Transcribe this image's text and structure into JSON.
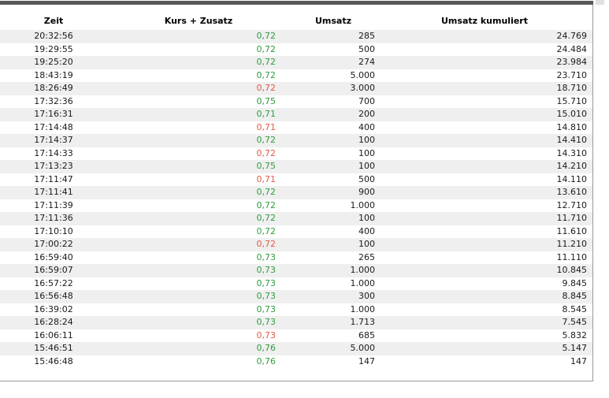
{
  "colors": {
    "up": "#2f9e3f",
    "down": "#e05c4b",
    "rowAlt": "#efefef",
    "topBar": "#58585a",
    "border": "#999999"
  },
  "table": {
    "headers": [
      "Zeit",
      "Kurs + Zusatz",
      "Umsatz",
      "Umsatz kumuliert"
    ],
    "rows": [
      {
        "zeit": "20:32:56",
        "kurs": "0,72",
        "trend": "up",
        "umsatz": "285",
        "kumuliert": "24.769"
      },
      {
        "zeit": "19:29:55",
        "kurs": "0,72",
        "trend": "up",
        "umsatz": "500",
        "kumuliert": "24.484"
      },
      {
        "zeit": "19:25:20",
        "kurs": "0,72",
        "trend": "up",
        "umsatz": "274",
        "kumuliert": "23.984"
      },
      {
        "zeit": "18:43:19",
        "kurs": "0,72",
        "trend": "up",
        "umsatz": "5.000",
        "kumuliert": "23.710"
      },
      {
        "zeit": "18:26:49",
        "kurs": "0,72",
        "trend": "down",
        "umsatz": "3.000",
        "kumuliert": "18.710"
      },
      {
        "zeit": "17:32:36",
        "kurs": "0,75",
        "trend": "up",
        "umsatz": "700",
        "kumuliert": "15.710"
      },
      {
        "zeit": "17:16:31",
        "kurs": "0,71",
        "trend": "up",
        "umsatz": "200",
        "kumuliert": "15.010"
      },
      {
        "zeit": "17:14:48",
        "kurs": "0,71",
        "trend": "down",
        "umsatz": "400",
        "kumuliert": "14.810"
      },
      {
        "zeit": "17:14:37",
        "kurs": "0,72",
        "trend": "up",
        "umsatz": "100",
        "kumuliert": "14.410"
      },
      {
        "zeit": "17:14:33",
        "kurs": "0,72",
        "trend": "down",
        "umsatz": "100",
        "kumuliert": "14.310"
      },
      {
        "zeit": "17:13:23",
        "kurs": "0,75",
        "trend": "up",
        "umsatz": "100",
        "kumuliert": "14.210"
      },
      {
        "zeit": "17:11:47",
        "kurs": "0,71",
        "trend": "down",
        "umsatz": "500",
        "kumuliert": "14.110"
      },
      {
        "zeit": "17:11:41",
        "kurs": "0,72",
        "trend": "up",
        "umsatz": "900",
        "kumuliert": "13.610"
      },
      {
        "zeit": "17:11:39",
        "kurs": "0,72",
        "trend": "up",
        "umsatz": "1.000",
        "kumuliert": "12.710"
      },
      {
        "zeit": "17:11:36",
        "kurs": "0,72",
        "trend": "up",
        "umsatz": "100",
        "kumuliert": "11.710"
      },
      {
        "zeit": "17:10:10",
        "kurs": "0,72",
        "trend": "up",
        "umsatz": "400",
        "kumuliert": "11.610"
      },
      {
        "zeit": "17:00:22",
        "kurs": "0,72",
        "trend": "down",
        "umsatz": "100",
        "kumuliert": "11.210"
      },
      {
        "zeit": "16:59:40",
        "kurs": "0,73",
        "trend": "up",
        "umsatz": "265",
        "kumuliert": "11.110"
      },
      {
        "zeit": "16:59:07",
        "kurs": "0,73",
        "trend": "up",
        "umsatz": "1.000",
        "kumuliert": "10.845"
      },
      {
        "zeit": "16:57:22",
        "kurs": "0,73",
        "trend": "up",
        "umsatz": "1.000",
        "kumuliert": "9.845"
      },
      {
        "zeit": "16:56:48",
        "kurs": "0,73",
        "trend": "up",
        "umsatz": "300",
        "kumuliert": "8.845"
      },
      {
        "zeit": "16:39:02",
        "kurs": "0,73",
        "trend": "up",
        "umsatz": "1.000",
        "kumuliert": "8.545"
      },
      {
        "zeit": "16:28:24",
        "kurs": "0,73",
        "trend": "up",
        "umsatz": "1.713",
        "kumuliert": "7.545"
      },
      {
        "zeit": "16:06:11",
        "kurs": "0,73",
        "trend": "down",
        "umsatz": "685",
        "kumuliert": "5.832"
      },
      {
        "zeit": "15:46:51",
        "kurs": "0,76",
        "trend": "up",
        "umsatz": "5.000",
        "kumuliert": "5.147"
      },
      {
        "zeit": "15:46:48",
        "kurs": "0,76",
        "trend": "up",
        "umsatz": "147",
        "kumuliert": "147"
      }
    ]
  }
}
